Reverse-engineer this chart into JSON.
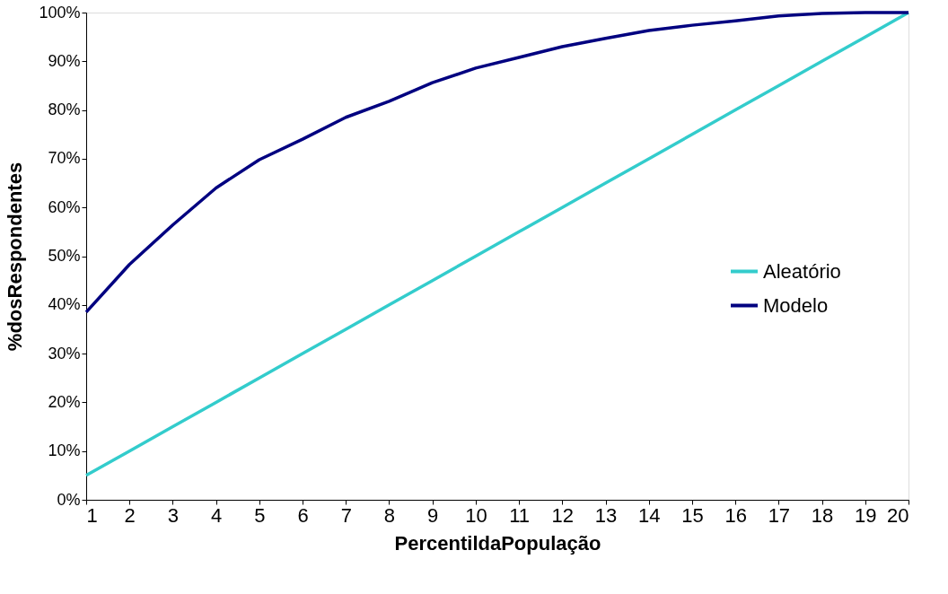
{
  "chart_data": {
    "type": "line",
    "xlabel": "PercentildaPopulação",
    "ylabel": "%dosRespondentes",
    "x": [
      1,
      2,
      3,
      4,
      5,
      6,
      7,
      8,
      9,
      10,
      11,
      12,
      13,
      14,
      15,
      16,
      17,
      18,
      19,
      20
    ],
    "series": [
      {
        "name": "Aleatório",
        "color": "#33cccc",
        "values": [
          5,
          10,
          15,
          20,
          25,
          30,
          35,
          40,
          45,
          50,
          55,
          60,
          65,
          70,
          75,
          80,
          85,
          90,
          95,
          100
        ]
      },
      {
        "name": "Modelo",
        "color": "#000080",
        "values": [
          38.5,
          48.3,
          56.4,
          64,
          69.8,
          74,
          78.5,
          81.8,
          85.6,
          88.6,
          90.8,
          93,
          94.7,
          96.3,
          97.4,
          98.3,
          99.3,
          99.8,
          100,
          100
        ]
      }
    ],
    "xlim": [
      1,
      20
    ],
    "xticks": [
      1,
      2,
      3,
      4,
      5,
      6,
      7,
      8,
      9,
      10,
      11,
      12,
      13,
      14,
      15,
      16,
      17,
      18,
      19,
      20
    ],
    "ylim": [
      0,
      100
    ],
    "yticks": [
      {
        "value": 0,
        "label": "0%"
      },
      {
        "value": 10,
        "label": "10%"
      },
      {
        "value": 20,
        "label": "20%"
      },
      {
        "value": 30,
        "label": "30%"
      },
      {
        "value": 40,
        "label": "40%"
      },
      {
        "value": 50,
        "label": "50%"
      },
      {
        "value": 60,
        "label": "60%"
      },
      {
        "value": 70,
        "label": "70%"
      },
      {
        "value": 80,
        "label": "80%"
      },
      {
        "value": 90,
        "label": "90%"
      },
      {
        "value": 100,
        "label": "100%"
      }
    ],
    "grid": false,
    "legend": "right",
    "marker": "none",
    "line_style": "solid"
  }
}
